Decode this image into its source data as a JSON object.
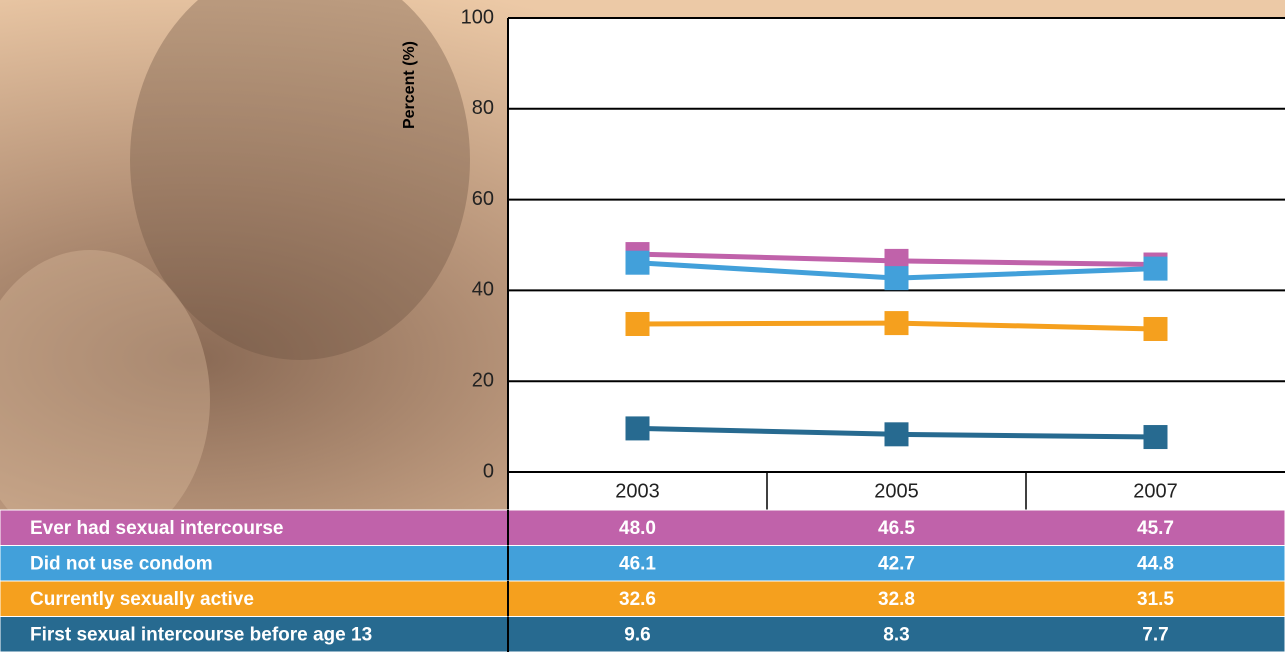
{
  "chart_data": {
    "type": "line",
    "y_label": "Percent (%)",
    "categories": [
      "2003",
      "2005",
      "2007"
    ],
    "ylim": [
      0,
      100
    ],
    "yticks": [
      0,
      20,
      40,
      60,
      80,
      100
    ],
    "grid": true,
    "series": [
      {
        "name": "Ever had sexual intercourse",
        "color": "#c062aa",
        "values": [
          48,
          46.5,
          45.7
        ],
        "value_labels": [
          "48.0",
          "46.5",
          "45.7"
        ]
      },
      {
        "name": "Did not use condom",
        "color": "#42a0da",
        "values": [
          46.1,
          42.7,
          44.8
        ],
        "value_labels": [
          "46.1",
          "42.7",
          "44.8"
        ]
      },
      {
        "name": "Currently sexually active",
        "color": "#f5a01e",
        "values": [
          32.6,
          32.8,
          31.5
        ],
        "value_labels": [
          "32.6",
          "32.8",
          "31.5"
        ]
      },
      {
        "name": "First sexual intercourse before age 13",
        "color": "#276a90",
        "values": [
          9.6,
          8.3,
          7.7
        ],
        "value_labels": [
          "9.6",
          "8.3",
          "7.7"
        ]
      }
    ]
  }
}
